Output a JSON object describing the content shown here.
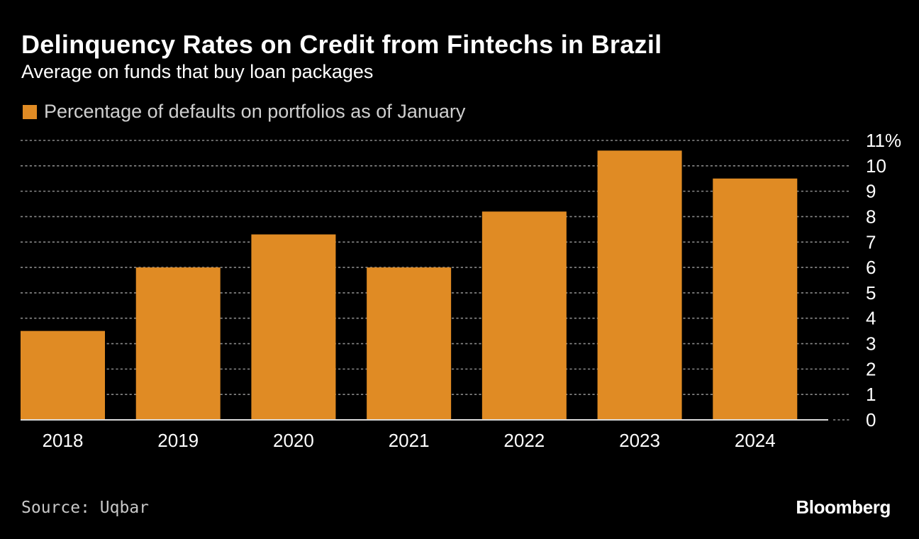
{
  "colors": {
    "background": "#000000",
    "bar": "#E08B24",
    "grid": "#8a8a8a",
    "text": "#ffffff",
    "muted_text": "#cfcfcf"
  },
  "chart_data": {
    "type": "bar",
    "title": "Delinquency Rates on Credit from Fintechs in Brazil",
    "subtitle": "Average on funds that buy loan packages",
    "legend": {
      "placement": "top-left",
      "entries": [
        "Percentage of defaults on portfolios as of January"
      ]
    },
    "categories": [
      "2018",
      "2019",
      "2020",
      "2021",
      "2022",
      "2023",
      "2024"
    ],
    "series": [
      {
        "name": "Percentage of defaults on portfolios as of January",
        "values": [
          3.5,
          6.0,
          7.3,
          6.0,
          8.2,
          10.6,
          9.5
        ]
      }
    ],
    "ylim": [
      0,
      11
    ],
    "y_ticks": [
      "0",
      "1",
      "2",
      "3",
      "4",
      "5",
      "6",
      "7",
      "8",
      "9",
      "10",
      "11%"
    ],
    "y_axis_position": "right",
    "grid": true,
    "source": "Source: Uqbar",
    "brand": "Bloomberg"
  }
}
